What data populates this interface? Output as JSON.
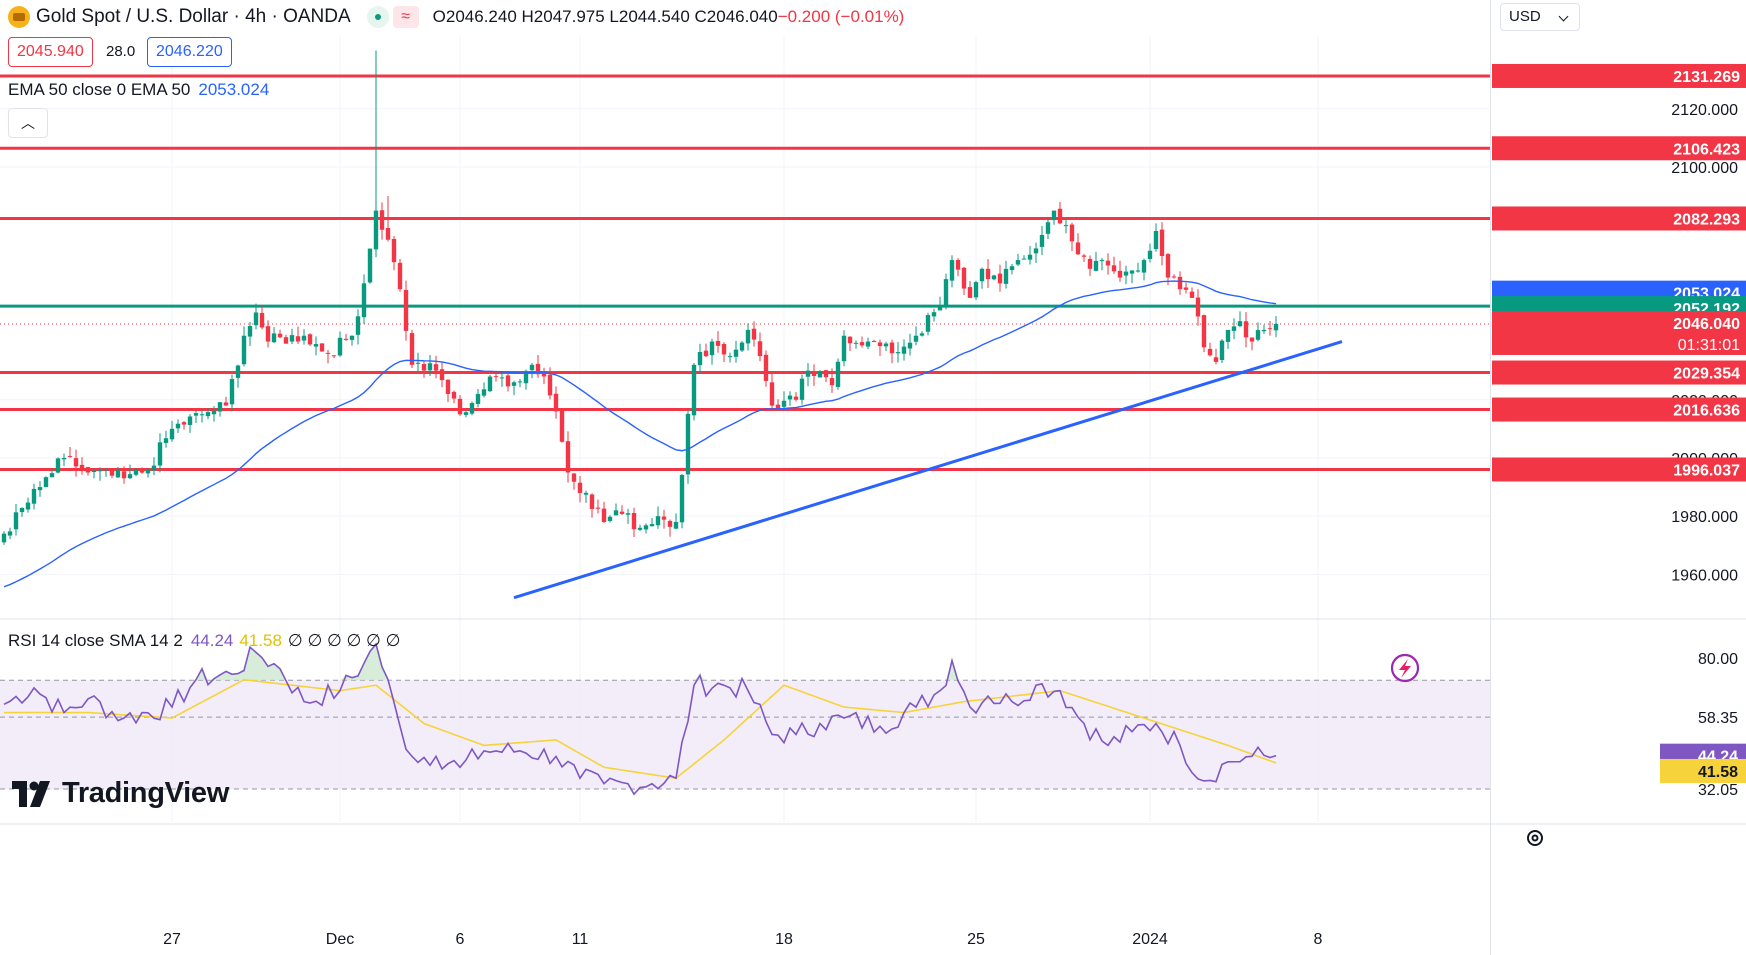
{
  "header": {
    "title": "Gold Spot / U.S. Dollar · 4h · OANDA",
    "ohlc": "O2046.240 H2047.975 L2044.540 C2046.040",
    "change": "−0.200 (−0.01%)"
  },
  "trade": {
    "sell": "2045.940",
    "spread": "28.0",
    "buy": "2046.220"
  },
  "indicators": {
    "ema_legend": "EMA 50 close 0 EMA 50",
    "ema_value": "2053.024",
    "rsi_legend": "RSI 14 close SMA 14 2",
    "rsi_value": "44.24",
    "rsi_sma_value": "41.58",
    "rsi_extra": "∅ ∅ ∅ ∅ ∅ ∅"
  },
  "currency": "USD",
  "brand": "TradingView",
  "colors": {
    "up": "#089981",
    "down": "#f23645",
    "ema": "#2962ff",
    "hline": "#f23645",
    "green_line": "#089981",
    "trend": "#2962ff",
    "rsi": "#7e57c2",
    "rsi_sma": "#f7d33b",
    "rsi_band": "#ede7f6"
  },
  "chart_data": {
    "type": "candlestick",
    "title": "Gold Spot / U.S. Dollar · 4h · OANDA",
    "y_range": [
      1945,
      2145
    ],
    "y_ticks": [
      1960,
      1980,
      2000,
      2020,
      2100,
      2120
    ],
    "y_tick_labels": [
      "1960.000",
      "1980.000",
      "2000.000",
      "2020.000",
      "2100.000",
      "2120.000"
    ],
    "x_labels": [
      {
        "label": "27",
        "i": 28
      },
      {
        "label": "Dec",
        "i": 56
      },
      {
        "label": "6",
        "i": 76
      },
      {
        "label": "11",
        "i": 96
      },
      {
        "label": "18",
        "i": 130
      },
      {
        "label": "25",
        "i": 162
      },
      {
        "label": "2024",
        "i": 191
      },
      {
        "label": "8",
        "i": 219
      }
    ],
    "horizontal_levels": [
      {
        "value": 2131.269,
        "label": "2131.269"
      },
      {
        "value": 2106.423,
        "label": "2106.423"
      },
      {
        "value": 2082.293,
        "label": "2082.293"
      },
      {
        "value": 2029.354,
        "label": "2029.354"
      },
      {
        "value": 2016.636,
        "label": "2016.636"
      },
      {
        "value": 1996.037,
        "label": "1996.037"
      }
    ],
    "green_level": {
      "value": 2052.192,
      "label": "2052.192"
    },
    "ema50": {
      "value": 2053.024,
      "label": "2053.024"
    },
    "last_price": {
      "value": 2046.04,
      "label": "2046.040",
      "countdown": "01:31:01"
    },
    "trendline": [
      {
        "i": 85,
        "price": 1952
      },
      {
        "i": 223,
        "price": 2040
      }
    ],
    "close_anchors": [
      [
        0,
        1974
      ],
      [
        6,
        1990
      ],
      [
        10,
        2000
      ],
      [
        14,
        1995
      ],
      [
        20,
        1993
      ],
      [
        24,
        1996
      ],
      [
        28,
        2010
      ],
      [
        33,
        2015
      ],
      [
        37,
        2018
      ],
      [
        40,
        2042
      ],
      [
        42,
        2050
      ],
      [
        44,
        2040
      ],
      [
        50,
        2042
      ],
      [
        54,
        2036
      ],
      [
        58,
        2042
      ],
      [
        60,
        2060
      ],
      [
        62,
        2085
      ],
      [
        64,
        2075
      ],
      [
        66,
        2058
      ],
      [
        68,
        2032
      ],
      [
        72,
        2030
      ],
      [
        76,
        2015
      ],
      [
        79,
        2022
      ],
      [
        82,
        2028
      ],
      [
        85,
        2026
      ],
      [
        88,
        2032
      ],
      [
        90,
        2028
      ],
      [
        92,
        2016
      ],
      [
        94,
        1995
      ],
      [
        97,
        1988
      ],
      [
        100,
        1978
      ],
      [
        102,
        1982
      ],
      [
        106,
        1976
      ],
      [
        109,
        1980
      ],
      [
        112,
        1978
      ],
      [
        115,
        2032
      ],
      [
        118,
        2040
      ],
      [
        121,
        2035
      ],
      [
        124,
        2044
      ],
      [
        126,
        2035
      ],
      [
        128,
        2018
      ],
      [
        132,
        2020
      ],
      [
        134,
        2030
      ],
      [
        138,
        2025
      ],
      [
        140,
        2042
      ],
      [
        144,
        2040
      ],
      [
        148,
        2036
      ],
      [
        152,
        2042
      ],
      [
        156,
        2052
      ],
      [
        158,
        2068
      ],
      [
        161,
        2055
      ],
      [
        163,
        2065
      ],
      [
        166,
        2060
      ],
      [
        169,
        2068
      ],
      [
        172,
        2072
      ],
      [
        175,
        2085
      ],
      [
        177,
        2080
      ],
      [
        179,
        2070
      ],
      [
        181,
        2065
      ],
      [
        183,
        2068
      ],
      [
        186,
        2062
      ],
      [
        190,
        2068
      ],
      [
        192,
        2078
      ],
      [
        194,
        2062
      ],
      [
        196,
        2058
      ],
      [
        198,
        2055
      ],
      [
        200,
        2038
      ],
      [
        202,
        2033
      ],
      [
        204,
        2044
      ],
      [
        206,
        2047
      ],
      [
        208,
        2040
      ],
      [
        210,
        2044
      ],
      [
        212,
        2046.04
      ]
    ],
    "rsi": {
      "title": "RSI 14 close SMA 14 2",
      "y_ticks": [
        80,
        58.35,
        32.05
      ],
      "band": [
        32.05,
        71.8
      ],
      "mid": 58.35,
      "last": 44.24,
      "sma_last": 41.58,
      "anchors": [
        [
          0,
          63
        ],
        [
          5,
          69
        ],
        [
          10,
          60
        ],
        [
          14,
          65
        ],
        [
          20,
          58
        ],
        [
          28,
          62
        ],
        [
          32,
          72
        ],
        [
          38,
          74
        ],
        [
          42,
          82
        ],
        [
          46,
          76
        ],
        [
          50,
          64
        ],
        [
          56,
          68
        ],
        [
          60,
          78
        ],
        [
          62,
          85
        ],
        [
          66,
          55
        ],
        [
          68,
          44
        ],
        [
          72,
          44
        ],
        [
          76,
          40
        ],
        [
          80,
          46
        ],
        [
          86,
          46
        ],
        [
          92,
          44
        ],
        [
          96,
          36
        ],
        [
          100,
          34
        ],
        [
          104,
          34
        ],
        [
          108,
          34
        ],
        [
          112,
          36
        ],
        [
          115,
          70
        ],
        [
          120,
          70
        ],
        [
          124,
          68
        ],
        [
          128,
          52
        ],
        [
          132,
          52
        ],
        [
          136,
          56
        ],
        [
          140,
          58
        ],
        [
          146,
          55
        ],
        [
          152,
          62
        ],
        [
          156,
          68
        ],
        [
          158,
          79
        ],
        [
          161,
          62
        ],
        [
          164,
          66
        ],
        [
          168,
          64
        ],
        [
          172,
          70
        ],
        [
          176,
          68
        ],
        [
          180,
          56
        ],
        [
          184,
          48
        ],
        [
          188,
          53
        ],
        [
          192,
          56
        ],
        [
          196,
          48
        ],
        [
          200,
          35
        ],
        [
          204,
          42
        ],
        [
          208,
          44
        ],
        [
          212,
          44.24
        ]
      ],
      "sma_anchors": [
        [
          0,
          60
        ],
        [
          14,
          60
        ],
        [
          28,
          58
        ],
        [
          40,
          72
        ],
        [
          56,
          68
        ],
        [
          62,
          70
        ],
        [
          70,
          56
        ],
        [
          80,
          48
        ],
        [
          92,
          50
        ],
        [
          100,
          40
        ],
        [
          112,
          36
        ],
        [
          120,
          50
        ],
        [
          130,
          70
        ],
        [
          140,
          62
        ],
        [
          150,
          60
        ],
        [
          160,
          64
        ],
        [
          176,
          68
        ],
        [
          190,
          58
        ],
        [
          204,
          48
        ],
        [
          212,
          41.58
        ]
      ]
    }
  }
}
